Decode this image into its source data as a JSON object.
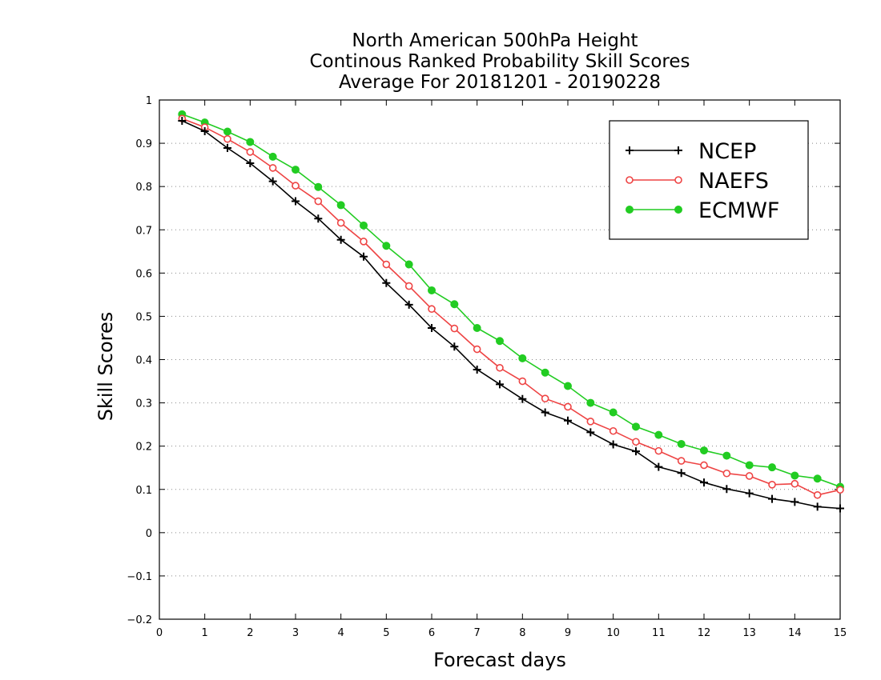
{
  "chart_data": {
    "type": "line",
    "title_lines": [
      "North American 500hPa Height",
      "Continous Ranked Probability Skill Scores",
      "Average For 20181201 - 20190228"
    ],
    "xlabel": "Forecast days",
    "ylabel": "Skill Scores",
    "xlim": [
      0,
      15
    ],
    "ylim": [
      -0.2,
      1
    ],
    "x_ticks": [
      "0",
      "1",
      "2",
      "3",
      "4",
      "5",
      "6",
      "7",
      "8",
      "9",
      "10",
      "11",
      "12",
      "13",
      "14",
      "15"
    ],
    "y_ticks": [
      "−0.2",
      "−0.1",
      "0",
      "0.1",
      "0.2",
      "0.3",
      "0.4",
      "0.5",
      "0.6",
      "0.7",
      "0.8",
      "0.9",
      "1"
    ],
    "grid": "horizontal-dotted",
    "legend_position": "top-right",
    "x": [
      0.5,
      1,
      1.5,
      2,
      2.5,
      3,
      3.5,
      4,
      4.5,
      5,
      5.5,
      6,
      6.5,
      7,
      7.5,
      8,
      8.5,
      9,
      9.5,
      10,
      10.5,
      11,
      11.5,
      12,
      12.5,
      13,
      13.5,
      14,
      14.5,
      15
    ],
    "series": [
      {
        "name": "NCEP",
        "color": "#000000",
        "marker": "plus",
        "values": [
          0.952,
          0.928,
          0.889,
          0.854,
          0.812,
          0.766,
          0.726,
          0.677,
          0.638,
          0.577,
          0.527,
          0.473,
          0.43,
          0.377,
          0.343,
          0.309,
          0.278,
          0.259,
          0.232,
          0.204,
          0.188,
          0.152,
          0.138,
          0.116,
          0.101,
          0.091,
          0.078,
          0.071,
          0.06,
          0.056
        ]
      },
      {
        "name": "NAEFS",
        "color": "#ee4444",
        "marker": "open-circle",
        "values": [
          0.957,
          0.937,
          0.91,
          0.88,
          0.843,
          0.802,
          0.766,
          0.716,
          0.673,
          0.62,
          0.57,
          0.517,
          0.472,
          0.424,
          0.381,
          0.35,
          0.31,
          0.291,
          0.257,
          0.235,
          0.21,
          0.189,
          0.166,
          0.156,
          0.137,
          0.131,
          0.111,
          0.113,
          0.087,
          0.099
        ]
      },
      {
        "name": "ECMWF",
        "color": "#22cc22",
        "marker": "filled-circle",
        "values": [
          0.967,
          0.948,
          0.927,
          0.903,
          0.869,
          0.839,
          0.799,
          0.757,
          0.71,
          0.663,
          0.62,
          0.56,
          0.528,
          0.473,
          0.443,
          0.403,
          0.37,
          0.339,
          0.3,
          0.278,
          0.245,
          0.226,
          0.205,
          0.19,
          0.178,
          0.156,
          0.151,
          0.132,
          0.125,
          0.106
        ]
      }
    ]
  }
}
